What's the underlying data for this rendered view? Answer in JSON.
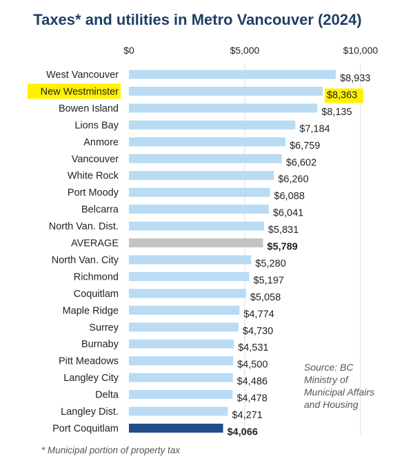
{
  "chart_data": {
    "type": "bar",
    "orientation": "horizontal",
    "title": "Taxes* and utilities in Metro Vancouver (2024)",
    "xlim": [
      0,
      10000
    ],
    "x_ticks": [
      "$0",
      "$5,000",
      "$10,000"
    ],
    "x_tick_values": [
      0,
      5000,
      10000
    ],
    "grid": "vertical",
    "categories": [
      "West Vancouver",
      "New Westminster",
      "Bowen Island",
      "Lions Bay",
      "Anmore",
      "Vancouver",
      "White Rock",
      "Port Moody",
      "Belcarra",
      "North Van. Dist.",
      "AVERAGE",
      "North Van. City",
      "Richmond",
      "Coquitlam",
      "Maple Ridge",
      "Surrey",
      "Burnaby",
      "Pitt Meadows",
      "Langley City",
      "Delta",
      "Langley Dist.",
      "Port Coquitlam"
    ],
    "values": [
      8933,
      8363,
      8135,
      7184,
      6759,
      6602,
      6260,
      6088,
      6041,
      5831,
      5789,
      5280,
      5197,
      5058,
      4774,
      4730,
      4531,
      4500,
      4486,
      4478,
      4271,
      4066
    ],
    "value_labels": [
      "$8,933",
      "$8,363",
      "$8,135",
      "$7,184",
      "$6,759",
      "$6,602",
      "$6,260",
      "$6,088",
      "$6,041",
      "$5,831",
      "$5,789",
      "$5,280",
      "$5,197",
      "$5,058",
      "$4,774",
      "$4,730",
      "$4,531",
      "$4,500",
      "$4,486",
      "$4,478",
      "$4,271",
      "$4,066"
    ],
    "highlighted": [
      "New Westminster"
    ],
    "colors": {
      "default_bar": "#b9dbf4",
      "average_bar": "#c3c3c3",
      "average_label": "#9a9a9a",
      "last_bar": "#1f4e8a",
      "last_label": "#1f4e8a",
      "highlight": "#fff200",
      "grid": "#dcdcdc",
      "title": "#1e3f66"
    },
    "source": "Source: BC Ministry of Municipal Affairs and Housing",
    "footnote": "* Municipal portion of property tax"
  }
}
